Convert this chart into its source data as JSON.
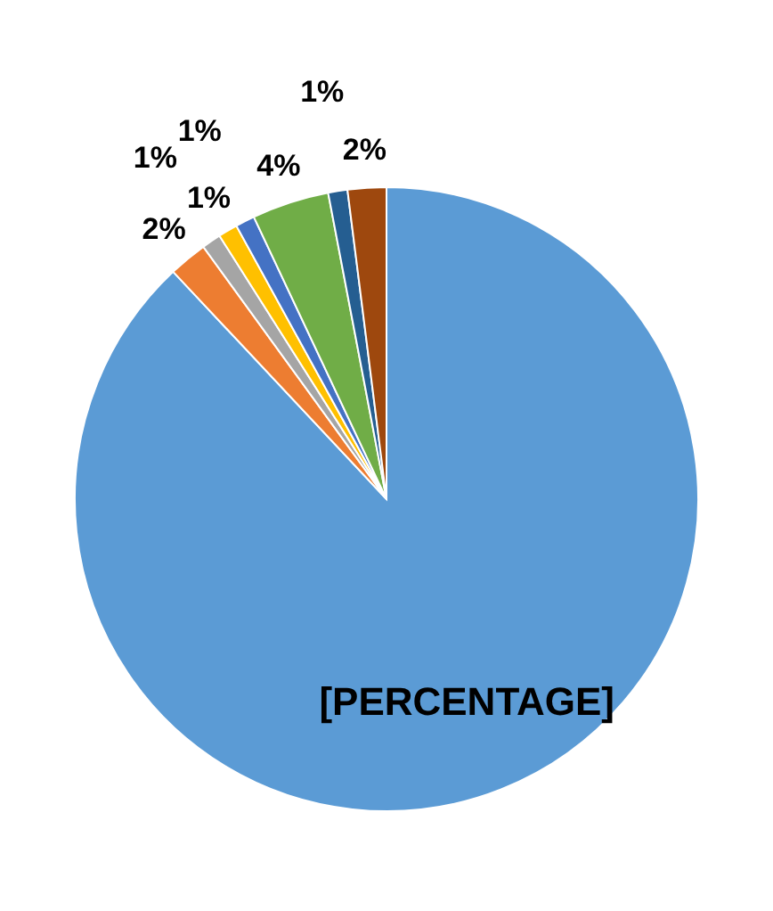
{
  "chart_data": {
    "type": "pie",
    "categories": [
      null,
      null,
      null,
      null,
      null,
      null,
      null,
      null
    ],
    "values": [
      88,
      2,
      1,
      1,
      1,
      4,
      1,
      2
    ],
    "colors": [
      "#5b9bd5",
      "#ed7d31",
      "#a5a5a5",
      "#ffc000",
      "#4472c4",
      "#70ad47",
      "#255e91",
      "#9e480e"
    ],
    "value_labels": [
      "[PERCENTAGE]",
      "2%",
      "1%",
      "1%",
      "1%",
      "4%",
      "1%",
      "2%"
    ],
    "legend": false
  }
}
